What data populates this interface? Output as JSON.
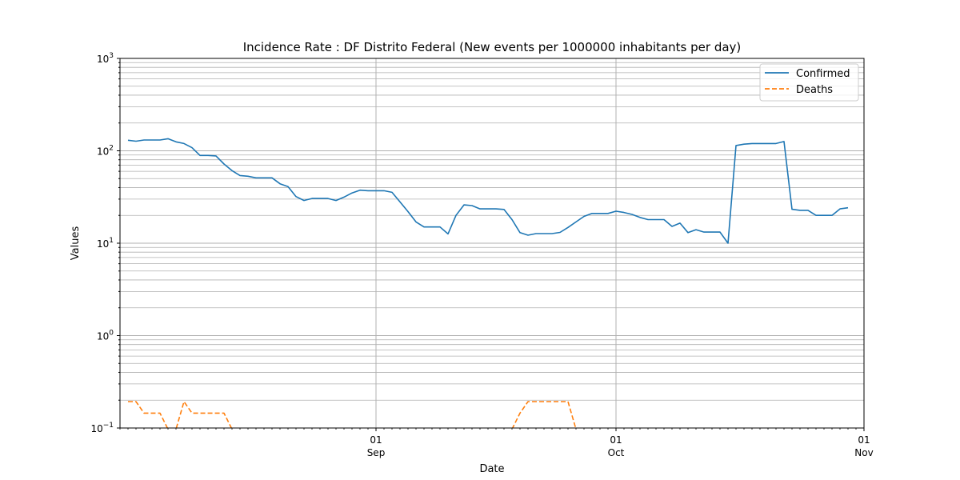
{
  "chart_data": {
    "type": "line",
    "title": "Incidence Rate : DF Distrito Federal (New events per 1000000 inhabitants per day)",
    "xlabel": "Date",
    "ylabel": "Values",
    "yscale": "log",
    "ylim": [
      0.1,
      1000
    ],
    "xlim": [
      "2020-07-31",
      "2020-11-01"
    ],
    "grid": true,
    "legend_position": "top-right",
    "x_ticks": [
      {
        "date": "2020-09-01",
        "day": "01",
        "month": "Sep"
      },
      {
        "date": "2020-10-01",
        "day": "01",
        "month": "Oct"
      },
      {
        "date": "2020-11-01",
        "day": "01",
        "month": "Nov"
      }
    ],
    "y_ticks": [
      {
        "value": 0.1,
        "base": "10",
        "exp": "−1"
      },
      {
        "value": 1,
        "base": "10",
        "exp": "0"
      },
      {
        "value": 10,
        "base": "10",
        "exp": "1"
      },
      {
        "value": 100,
        "base": "10",
        "exp": "2"
      },
      {
        "value": 1000,
        "base": "10",
        "exp": "3"
      }
    ],
    "series": [
      {
        "name": "Confirmed",
        "color": "#1f77b4",
        "style": "solid",
        "points": [
          [
            "2020-08-01",
            130
          ],
          [
            "2020-08-02",
            127
          ],
          [
            "2020-08-03",
            131
          ],
          [
            "2020-08-04",
            131
          ],
          [
            "2020-08-05",
            131
          ],
          [
            "2020-08-06",
            135
          ],
          [
            "2020-08-07",
            125
          ],
          [
            "2020-08-08",
            120
          ],
          [
            "2020-08-09",
            108
          ],
          [
            "2020-08-10",
            89
          ],
          [
            "2020-08-11",
            89
          ],
          [
            "2020-08-12",
            88
          ],
          [
            "2020-08-13",
            72
          ],
          [
            "2020-08-14",
            61
          ],
          [
            "2020-08-15",
            54
          ],
          [
            "2020-08-16",
            53
          ],
          [
            "2020-08-17",
            51
          ],
          [
            "2020-08-18",
            51
          ],
          [
            "2020-08-19",
            51
          ],
          [
            "2020-08-20",
            44
          ],
          [
            "2020-08-21",
            41
          ],
          [
            "2020-08-22",
            32
          ],
          [
            "2020-08-23",
            29
          ],
          [
            "2020-08-24",
            30.5
          ],
          [
            "2020-08-25",
            30.5
          ],
          [
            "2020-08-26",
            30.5
          ],
          [
            "2020-08-27",
            29
          ],
          [
            "2020-08-28",
            31.5
          ],
          [
            "2020-08-29",
            35
          ],
          [
            "2020-08-30",
            37.5
          ],
          [
            "2020-08-31",
            37
          ],
          [
            "2020-09-01",
            37
          ],
          [
            "2020-09-02",
            37
          ],
          [
            "2020-09-03",
            35.5
          ],
          [
            "2020-09-04",
            28
          ],
          [
            "2020-09-05",
            22
          ],
          [
            "2020-09-06",
            17
          ],
          [
            "2020-09-07",
            15
          ],
          [
            "2020-09-08",
            15
          ],
          [
            "2020-09-09",
            15
          ],
          [
            "2020-09-10",
            12.6
          ],
          [
            "2020-09-11",
            20
          ],
          [
            "2020-09-12",
            26
          ],
          [
            "2020-09-13",
            25.5
          ],
          [
            "2020-09-14",
            23.5
          ],
          [
            "2020-09-15",
            23.5
          ],
          [
            "2020-09-16",
            23.5
          ],
          [
            "2020-09-17",
            23.2
          ],
          [
            "2020-09-18",
            18
          ],
          [
            "2020-09-19",
            13
          ],
          [
            "2020-09-20",
            12.2
          ],
          [
            "2020-09-21",
            12.7
          ],
          [
            "2020-09-22",
            12.7
          ],
          [
            "2020-09-23",
            12.7
          ],
          [
            "2020-09-24",
            13.1
          ],
          [
            "2020-09-25",
            14.8
          ],
          [
            "2020-09-26",
            17
          ],
          [
            "2020-09-27",
            19.5
          ],
          [
            "2020-09-28",
            21
          ],
          [
            "2020-09-29",
            21
          ],
          [
            "2020-09-30",
            21
          ],
          [
            "2020-10-01",
            22.2
          ],
          [
            "2020-10-02",
            21.5
          ],
          [
            "2020-10-03",
            20.5
          ],
          [
            "2020-10-04",
            19
          ],
          [
            "2020-10-05",
            18
          ],
          [
            "2020-10-06",
            18
          ],
          [
            "2020-10-07",
            18
          ],
          [
            "2020-10-08",
            15.2
          ],
          [
            "2020-10-09",
            16.5
          ],
          [
            "2020-10-10",
            13
          ],
          [
            "2020-10-11",
            14
          ],
          [
            "2020-10-12",
            13.2
          ],
          [
            "2020-10-13",
            13.2
          ],
          [
            "2020-10-14",
            13.2
          ],
          [
            "2020-10-15",
            10
          ],
          [
            "2020-10-16",
            114
          ],
          [
            "2020-10-17",
            118
          ],
          [
            "2020-10-18",
            120
          ],
          [
            "2020-10-19",
            120
          ],
          [
            "2020-10-20",
            120
          ],
          [
            "2020-10-21",
            120
          ],
          [
            "2020-10-22",
            126
          ],
          [
            "2020-10-23",
            23.3
          ],
          [
            "2020-10-24",
            22.7
          ],
          [
            "2020-10-25",
            22.7
          ],
          [
            "2020-10-26",
            20
          ],
          [
            "2020-10-27",
            20
          ],
          [
            "2020-10-28",
            20
          ],
          [
            "2020-10-29",
            23.5
          ],
          [
            "2020-10-30",
            24.2
          ]
        ]
      },
      {
        "name": "Deaths",
        "color": "#ff7f0e",
        "style": "dashed",
        "points": [
          [
            "2020-08-01",
            0.193
          ],
          [
            "2020-08-02",
            0.193
          ],
          [
            "2020-08-03",
            0.145
          ],
          [
            "2020-08-04",
            0.145
          ],
          [
            "2020-08-05",
            0.145
          ],
          [
            "2020-08-06",
            0.097
          ],
          [
            "2020-08-07",
            0.097
          ],
          [
            "2020-08-08",
            0.193
          ],
          [
            "2020-08-09",
            0.145
          ],
          [
            "2020-08-10",
            0.145
          ],
          [
            "2020-08-11",
            0.145
          ],
          [
            "2020-08-12",
            0.145
          ],
          [
            "2020-08-13",
            0.145
          ],
          [
            "2020-08-14",
            0.097
          ],
          null,
          [
            "2020-09-18",
            0.097
          ],
          [
            "2020-09-19",
            0.145
          ],
          [
            "2020-09-20",
            0.193
          ],
          [
            "2020-09-21",
            0.193
          ],
          [
            "2020-09-22",
            0.193
          ],
          [
            "2020-09-23",
            0.193
          ],
          [
            "2020-09-24",
            0.193
          ],
          [
            "2020-09-25",
            0.193
          ],
          [
            "2020-09-26",
            0.097
          ]
        ]
      }
    ]
  }
}
